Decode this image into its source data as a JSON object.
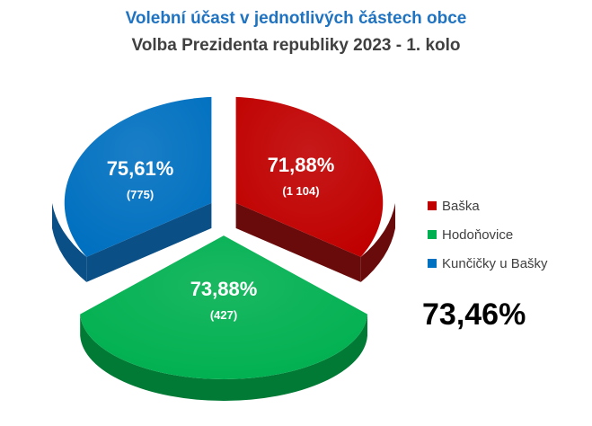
{
  "title": "Volební účast v jednotlivých částech obce",
  "subtitle": "Volba Prezidenta republiky 2023 - 1. kolo",
  "total_turnout": "73,46%",
  "chart_data": {
    "type": "pie",
    "title": "Volební účast v jednotlivých částech obce",
    "subtitle": "Volba Prezidenta republiky 2023 - 1. kolo",
    "legend_position": "right",
    "slices": [
      {
        "name": "Baška",
        "turnout_pct": 71.88,
        "label": "71,88%",
        "voters": "(1 104)",
        "color": "#c00000",
        "side_color": "#6a0b0b"
      },
      {
        "name": "Hodoňovice",
        "turnout_pct": 73.88,
        "label": "73,88%",
        "voters": "(427)",
        "color": "#00b050",
        "side_color": "#007a35"
      },
      {
        "name": "Kunčičky u Bašky",
        "turnout_pct": 75.61,
        "label": "75,61%",
        "voters": "(775)",
        "color": "#0070c0",
        "side_color": "#0a4f86"
      }
    ]
  }
}
